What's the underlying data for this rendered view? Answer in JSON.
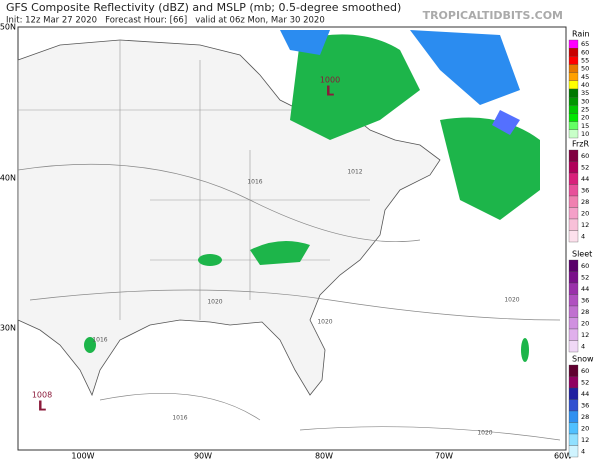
{
  "header": {
    "title": "GFS Composite Reflectivity (dBZ) and MSLP (mb; 0.5-degree smoothed)",
    "subtitle": "Init: 12z Mar 27 2020   Forecast Hour: [66]   valid at 06z Mon, Mar 30 2020",
    "credit": "TROPICALTIDBITS.COM"
  },
  "map": {
    "lat_labels": [
      "50N",
      "40N",
      "30N"
    ],
    "lon_labels": [
      "100W",
      "90W",
      "80W",
      "70W",
      "60W"
    ],
    "pressure_centers": [
      {
        "value": "1000",
        "symbol": "L"
      },
      {
        "value": "1008",
        "symbol": "L"
      }
    ],
    "contour_labels": [
      "1016",
      "1012",
      "1020",
      "1020",
      "1016",
      "1020",
      "1016",
      "1020"
    ]
  },
  "legends": [
    {
      "name": "Rain",
      "labels": [
        "65",
        "60",
        "55",
        "50",
        "45",
        "40",
        "35",
        "30",
        "25",
        "20",
        "15",
        "10"
      ]
    },
    {
      "name": "FrzR",
      "labels": [
        "60",
        "52",
        "44",
        "36",
        "28",
        "20",
        "12",
        "4"
      ]
    },
    {
      "name": "Sleet",
      "labels": [
        "60",
        "52",
        "44",
        "36",
        "28",
        "20",
        "12",
        "4"
      ]
    },
    {
      "name": "Snow",
      "labels": [
        "60",
        "52",
        "44",
        "36",
        "28",
        "20",
        "12",
        "4"
      ]
    }
  ]
}
